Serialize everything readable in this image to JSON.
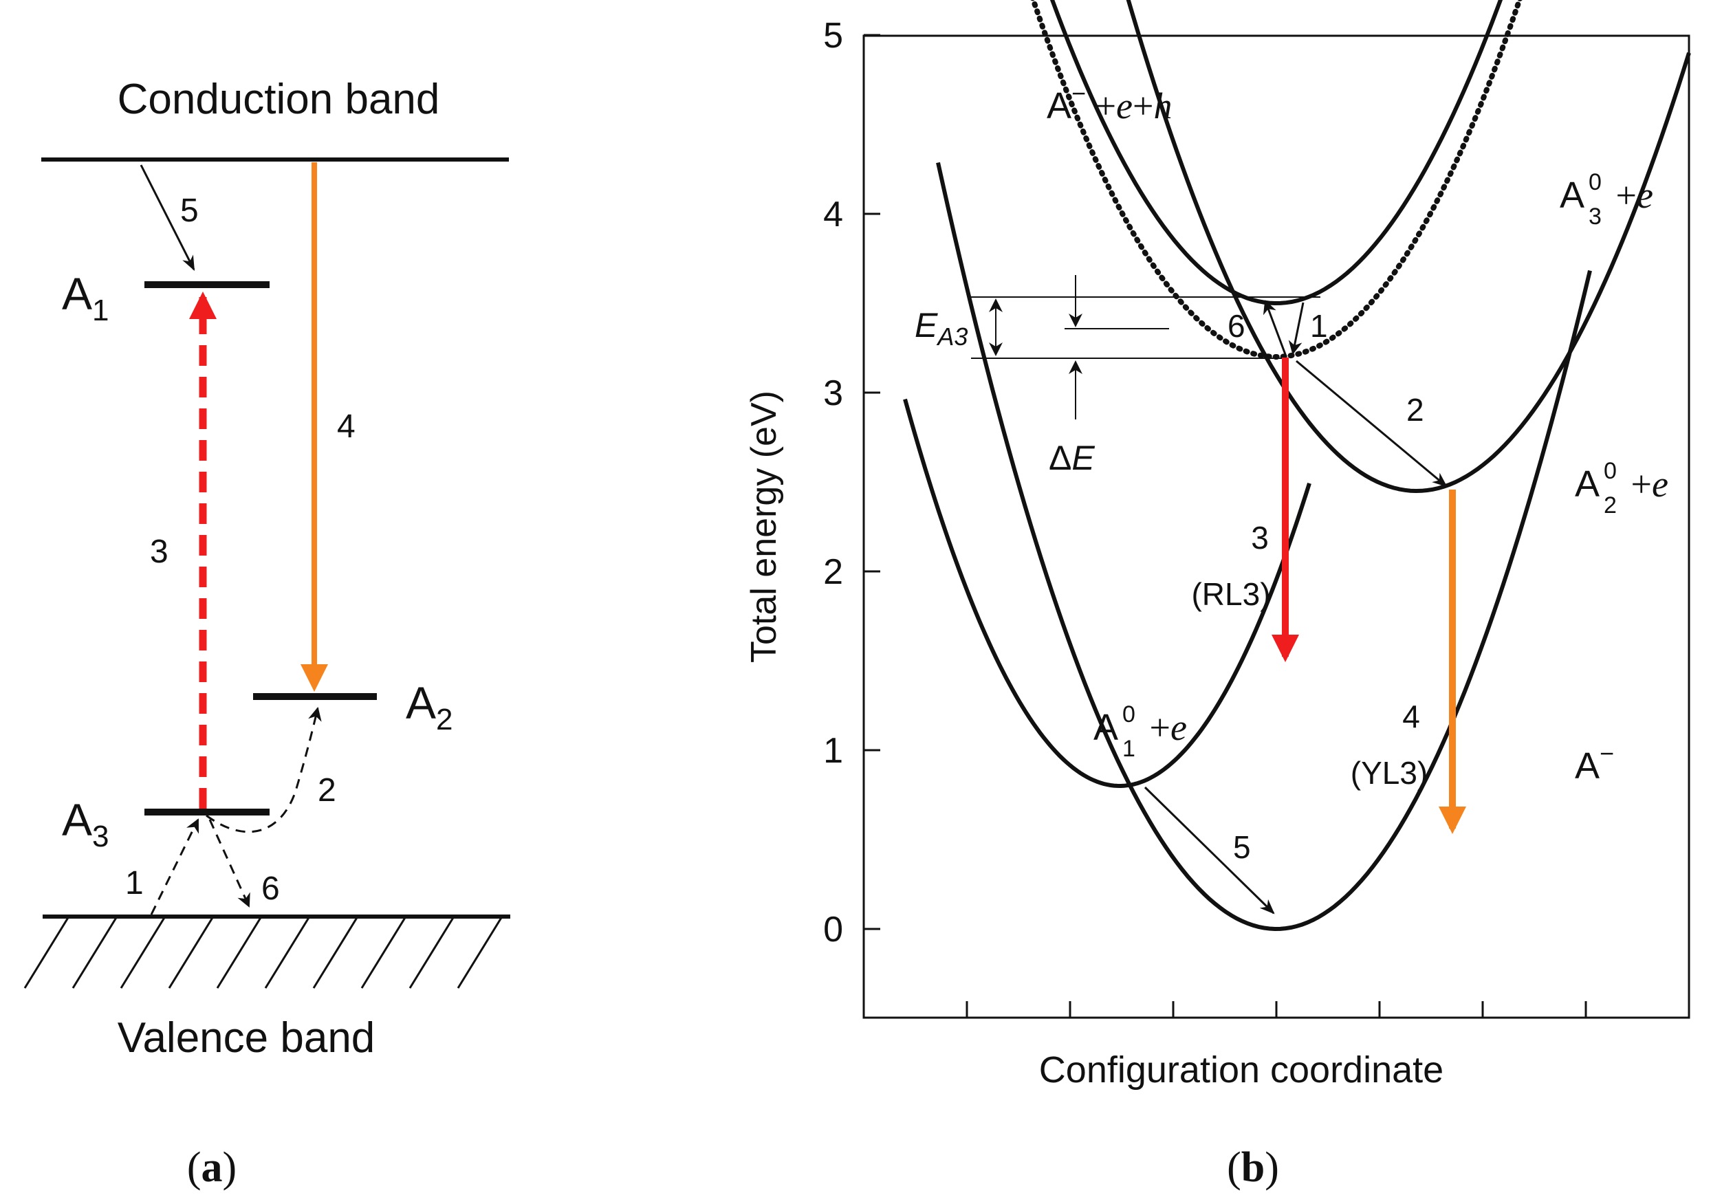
{
  "colors": {
    "red": "#ef1d1d",
    "orange": "#f5841f",
    "black": "#111111"
  },
  "panel_a": {
    "caption_letter": "a",
    "conduction_label": "Conduction band",
    "valence_label": "Valence band",
    "levels": {
      "a1": "A",
      "a1_sub": "1",
      "a2": "A",
      "a2_sub": "2",
      "a3": "A",
      "a3_sub": "3"
    },
    "transitions": {
      "t1": "1",
      "t2": "2",
      "t3": "3",
      "t4": "4",
      "t5": "5",
      "t6": "6"
    }
  },
  "panel_b": {
    "caption_letter": "b",
    "chart_data": {
      "type": "line",
      "xlabel": "Configuration coordinate",
      "ylabel": "Total energy (eV)",
      "ylim": [
        -0.5,
        5
      ],
      "yticks": [
        "0",
        "1",
        "2",
        "3",
        "4",
        "5"
      ],
      "x_tick_count": 8,
      "series": [
        {
          "name": "A⁻ + e + h",
          "minimum_x": 0.5,
          "minimum_energy_eV": 3.5,
          "style": "solid"
        },
        {
          "name": "A3⁰ + e",
          "minimum_x": 0.5,
          "minimum_energy_eV": 3.2,
          "style": "dotted"
        },
        {
          "name": "A2⁰ + e",
          "minimum_x": 0.67,
          "minimum_energy_eV": 2.45,
          "style": "solid"
        },
        {
          "name": "A1⁰ + e",
          "minimum_x": 0.31,
          "minimum_energy_eV": 0.8,
          "style": "solid"
        },
        {
          "name": "A⁻",
          "minimum_x": 0.5,
          "minimum_energy_eV": 0.0,
          "style": "solid"
        }
      ],
      "transitions": [
        {
          "id": "1",
          "from_eV": 3.5,
          "to_eV": 3.2
        },
        {
          "id": "2",
          "from_eV": 3.2,
          "to_eV": 2.45
        },
        {
          "id": "3",
          "name": "RL3",
          "from_eV": 3.2,
          "to_eV": 1.45,
          "color": "#ef1d1d"
        },
        {
          "id": "4",
          "name": "YL3",
          "from_eV": 2.45,
          "to_eV": 0.4,
          "color": "#f5841f"
        },
        {
          "id": "5",
          "from_eV": 0.8,
          "to_eV": 0.0
        },
        {
          "id": "6",
          "from_eV": 3.2,
          "to_eV": 3.5
        }
      ]
    },
    "curve_labels": {
      "a_minus_ehA": "A",
      "a_minus_ehB": " +",
      "a_minus_ehC": "e",
      "a_minus_ehD": "+",
      "a_minus_ehE": "h",
      "a3A": "A",
      "a3_sup": "0",
      "a3_sub": "3",
      "a3B": " +",
      "a3C": "e",
      "a2A": "A",
      "a2_sup": "0",
      "a2_sub": "2",
      "a2B": " +",
      "a2C": "e",
      "a1A": "A",
      "a1_sup": "0",
      "a1_sub": "1",
      "a1B": " +",
      "a1C": "e",
      "a_minA": "A",
      "minus_sign": "−"
    },
    "annotations": {
      "e_a3": "E",
      "e_a3_sub": "A3",
      "delta_e_sym": "Δ",
      "delta_e_var": "E",
      "t1": "1",
      "t2": "2",
      "t3": "3",
      "t3_name": "(RL3)",
      "t4": "4",
      "t4_name": "(YL3)",
      "t5": "5",
      "t6": "6"
    }
  }
}
